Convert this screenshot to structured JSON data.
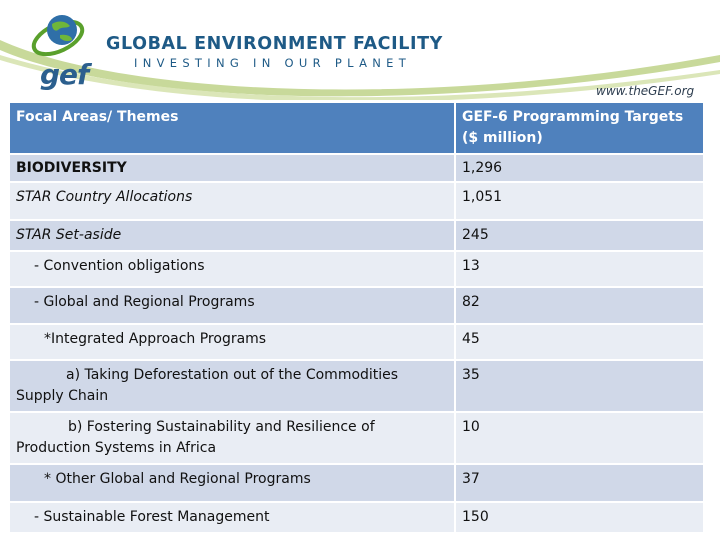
{
  "header": {
    "logo_text": "gef",
    "org_title": "GLOBAL ENVIRONMENT FACILITY",
    "tagline": "INVESTING IN OUR PLANET",
    "url": "www.theGEF.org",
    "colors": {
      "brand_blue": "#1e5a86",
      "swoosh_green": "#c8d99a",
      "globe_green": "#5aa02c"
    }
  },
  "table": {
    "headers": [
      "Focal Areas/ Themes",
      "GEF-6 Programming Targets ($ million)"
    ],
    "rows": [
      {
        "label": "BIODIVERSITY",
        "value": "1,296"
      },
      {
        "label": "STAR Country Allocations",
        "value": "1,051"
      },
      {
        "label": "STAR Set-aside",
        "value": "245"
      },
      {
        "label": "- Convention obligations",
        "value": "13"
      },
      {
        "label": "- Global and Regional Programs",
        "value": "82"
      },
      {
        "label": "*Integrated Approach Programs",
        "value": "45"
      },
      {
        "label_lines": [
          "a) Taking Deforestation out of the Commodities",
          "Supply Chain"
        ],
        "value": "35"
      },
      {
        "label_lines": [
          "b) Fostering Sustainability and Resilience of",
          "Production Systems in Africa"
        ],
        "value": "10"
      },
      {
        "label": "* Other Global and Regional Programs",
        "value": "37"
      },
      {
        "label": "- Sustainable Forest Management",
        "value": "150"
      }
    ],
    "colors": {
      "header_bg": "#4f81bd",
      "row_odd": "#d0d8e8",
      "row_even": "#e9edf4"
    }
  }
}
